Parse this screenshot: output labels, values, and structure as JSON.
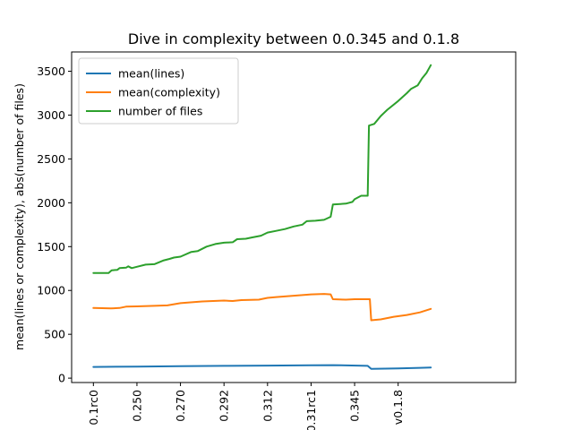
{
  "chart_data": {
    "type": "line",
    "title": "Dive in complexity between 0.0.345 and 0.1.8",
    "xlabel": "",
    "ylabel": "mean(lines or complexity), abs(number of files)",
    "ylim": [
      -50,
      3720
    ],
    "y_ticks": [
      0,
      500,
      1000,
      1500,
      2000,
      2500,
      3000,
      3500
    ],
    "x_range": [
      -0.5,
      9.7
    ],
    "x_ticks": [
      {
        "x": 0,
        "label": "0.1rc0"
      },
      {
        "x": 1,
        "label": "0.250"
      },
      {
        "x": 2,
        "label": "0.270"
      },
      {
        "x": 3,
        "label": "0.292"
      },
      {
        "x": 4,
        "label": "0.312"
      },
      {
        "x": 5,
        "label": "0.31rc1"
      },
      {
        "x": 6,
        "label": "0.345"
      },
      {
        "x": 7,
        "label": "v0.1.8"
      }
    ],
    "legend": {
      "placement": "upper-left"
    },
    "grid": false,
    "series": [
      {
        "name": "mean(lines)",
        "color": "#1f77b4",
        "points": [
          [
            0,
            128
          ],
          [
            1,
            132
          ],
          [
            2,
            136
          ],
          [
            3,
            140
          ],
          [
            4,
            143
          ],
          [
            5,
            146
          ],
          [
            5.5,
            148
          ],
          [
            6.3,
            140
          ],
          [
            6.38,
            105
          ],
          [
            7,
            110
          ],
          [
            7.5,
            118
          ],
          [
            7.75,
            122
          ]
        ]
      },
      {
        "name": "mean(complexity)",
        "color": "#ff7f0e",
        "points": [
          [
            0,
            800
          ],
          [
            0.4,
            795
          ],
          [
            0.6,
            800
          ],
          [
            0.75,
            815
          ],
          [
            1,
            818
          ],
          [
            1.4,
            825
          ],
          [
            1.7,
            830
          ],
          [
            2,
            855
          ],
          [
            2.5,
            875
          ],
          [
            3,
            885
          ],
          [
            3.2,
            880
          ],
          [
            3.4,
            890
          ],
          [
            3.8,
            895
          ],
          [
            4,
            915
          ],
          [
            4.2,
            925
          ],
          [
            4.6,
            940
          ],
          [
            5,
            955
          ],
          [
            5.3,
            960
          ],
          [
            5.45,
            955
          ],
          [
            5.5,
            900
          ],
          [
            5.8,
            895
          ],
          [
            6,
            900
          ],
          [
            6.35,
            900
          ],
          [
            6.38,
            660
          ],
          [
            6.6,
            670
          ],
          [
            6.9,
            700
          ],
          [
            7.2,
            720
          ],
          [
            7.5,
            750
          ],
          [
            7.75,
            790
          ]
        ]
      },
      {
        "name": "number of files",
        "color": "#2ca02c",
        "points": [
          [
            0,
            1200
          ],
          [
            0.35,
            1200
          ],
          [
            0.42,
            1230
          ],
          [
            0.55,
            1235
          ],
          [
            0.6,
            1255
          ],
          [
            0.75,
            1260
          ],
          [
            0.8,
            1275
          ],
          [
            0.88,
            1255
          ],
          [
            1,
            1270
          ],
          [
            1.2,
            1295
          ],
          [
            1.4,
            1300
          ],
          [
            1.6,
            1340
          ],
          [
            1.75,
            1360
          ],
          [
            1.85,
            1375
          ],
          [
            2,
            1385
          ],
          [
            2.25,
            1440
          ],
          [
            2.4,
            1450
          ],
          [
            2.6,
            1500
          ],
          [
            2.8,
            1530
          ],
          [
            3,
            1545
          ],
          [
            3.2,
            1550
          ],
          [
            3.3,
            1585
          ],
          [
            3.5,
            1590
          ],
          [
            3.65,
            1605
          ],
          [
            3.85,
            1625
          ],
          [
            4,
            1660
          ],
          [
            4.2,
            1680
          ],
          [
            4.4,
            1700
          ],
          [
            4.6,
            1730
          ],
          [
            4.8,
            1750
          ],
          [
            4.9,
            1790
          ],
          [
            5.1,
            1795
          ],
          [
            5.3,
            1805
          ],
          [
            5.45,
            1840
          ],
          [
            5.5,
            1980
          ],
          [
            5.8,
            1990
          ],
          [
            5.95,
            2010
          ],
          [
            6,
            2040
          ],
          [
            6.15,
            2080
          ],
          [
            6.3,
            2080
          ],
          [
            6.33,
            2880
          ],
          [
            6.45,
            2900
          ],
          [
            6.6,
            2990
          ],
          [
            6.75,
            3060
          ],
          [
            7.0,
            3160
          ],
          [
            7.2,
            3250
          ],
          [
            7.3,
            3300
          ],
          [
            7.45,
            3340
          ],
          [
            7.55,
            3420
          ],
          [
            7.65,
            3480
          ],
          [
            7.75,
            3570
          ]
        ]
      }
    ]
  }
}
